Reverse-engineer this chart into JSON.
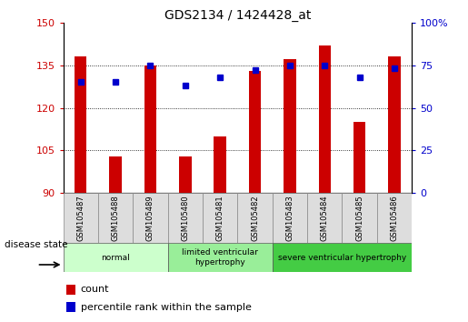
{
  "title": "GDS2134 / 1424428_at",
  "samples": [
    "GSM105487",
    "GSM105488",
    "GSM105489",
    "GSM105480",
    "GSM105481",
    "GSM105482",
    "GSM105483",
    "GSM105484",
    "GSM105485",
    "GSM105486"
  ],
  "counts": [
    138,
    103,
    135,
    103,
    110,
    133,
    137,
    142,
    115,
    138
  ],
  "percentiles": [
    65,
    65,
    75,
    63,
    68,
    72,
    75,
    75,
    68,
    73
  ],
  "bar_color": "#cc0000",
  "dot_color": "#0000cc",
  "ylim_left": [
    90,
    150
  ],
  "ylim_right": [
    0,
    100
  ],
  "yticks_left": [
    90,
    105,
    120,
    135,
    150
  ],
  "yticks_right": [
    0,
    25,
    50,
    75,
    100
  ],
  "grid_lines": [
    105,
    120,
    135
  ],
  "groups": [
    {
      "label": "normal",
      "start": 0,
      "end": 3,
      "color": "#ccffcc"
    },
    {
      "label": "limited ventricular\nhypertrophy",
      "start": 3,
      "end": 6,
      "color": "#99ee99"
    },
    {
      "label": "severe ventricular hypertrophy",
      "start": 6,
      "end": 10,
      "color": "#44cc44"
    }
  ],
  "disease_state_label": "disease state",
  "legend_count_label": "count",
  "legend_percentile_label": "percentile rank within the sample",
  "bar_color_legend": "#cc0000",
  "dot_color_legend": "#0000cc",
  "tick_label_color_left": "#cc0000",
  "tick_label_color_right": "#0000cc"
}
